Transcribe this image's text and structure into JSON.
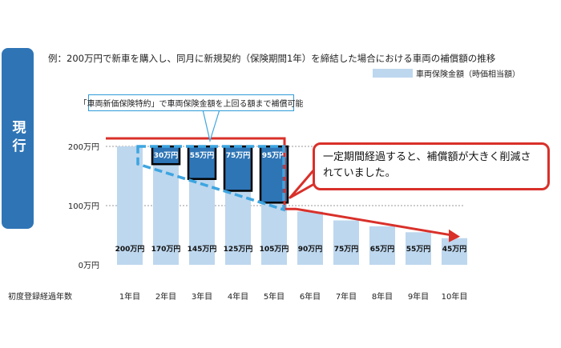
{
  "side_tab": {
    "label": "現行"
  },
  "subtitle": "例：200万円で新車を購入し、同月に新規契約（保険期間1年）を締結した場合における車両の補償額の推移",
  "callout_top": "「車両新価保険特約」で車両保険金額を上回る額まで補償可能",
  "callout_red": "一定期間経過すると、補償額が大きく削減されていました。",
  "colors": {
    "bar": "#bdd7ee",
    "supplement": "#2e75b6",
    "red": "#d9302a",
    "dashed": "#3da5e0"
  },
  "chart_data": {
    "type": "bar",
    "xlabel": "初度登録経過年数",
    "ylabel": "",
    "ylim": [
      0,
      200
    ],
    "yticks": [
      {
        "value": 0,
        "label": "0万円"
      },
      {
        "value": 100,
        "label": "100万円"
      },
      {
        "value": 200,
        "label": "200万円"
      }
    ],
    "categories": [
      "1年目",
      "2年目",
      "3年目",
      "4年目",
      "5年目",
      "6年目",
      "7年目",
      "8年目",
      "9年目",
      "10年目"
    ],
    "series": [
      {
        "name": "車両保険金額（時価相当額）",
        "values": [
          200,
          170,
          145,
          125,
          105,
          90,
          75,
          65,
          55,
          45
        ],
        "labels": [
          "200万円",
          "170万円",
          "145万円",
          "125万円",
          "105万円",
          "90万円",
          "75万円",
          "65万円",
          "55万円",
          "45万円"
        ]
      },
      {
        "values": [
          0,
          30,
          55,
          75,
          95,
          0,
          0,
          0,
          0,
          0
        ],
        "labels": [
          "",
          "30万円",
          "55万円",
          "75万円",
          "95万円",
          "",
          "",
          "",
          "",
          ""
        ]
      }
    ],
    "grid": true,
    "legend_position": "top-right"
  }
}
